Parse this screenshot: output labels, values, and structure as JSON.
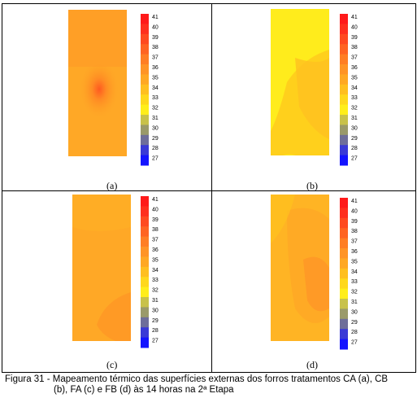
{
  "figure": {
    "panels": [
      {
        "label": "(a)",
        "treatment": "CA"
      },
      {
        "label": "(b)",
        "treatment": "CB"
      },
      {
        "label": "(c)",
        "treatment": "FA"
      },
      {
        "label": "(d)",
        "treatment": "FB"
      }
    ],
    "caption_line1": "Figura 31 - Mapeamento térmico das superfícies externas dos forros tratamentos CA (a), CB",
    "caption_line2": "(b), FA (c) e FB (d) às 14 horas na 2ª Etapa"
  },
  "chart_data": {
    "type": "heatmap",
    "colorbar_ticks": [
      "41",
      "40",
      "39",
      "38",
      "37",
      "36",
      "35",
      "34",
      "33",
      "32",
      "31",
      "30",
      "29",
      "28",
      "27"
    ],
    "colorbar_colors": [
      "#ff1a1a",
      "#ff2f1e",
      "#ff4a20",
      "#ff6422",
      "#ff7e24",
      "#ff9426",
      "#ffa824",
      "#ffbf20",
      "#ffd81c",
      "#ffee1a",
      "#c8c24a",
      "#9a9a6a",
      "#6e6e9a",
      "#3a3ad6",
      "#1414ff"
    ],
    "range": [
      27,
      41
    ]
  }
}
